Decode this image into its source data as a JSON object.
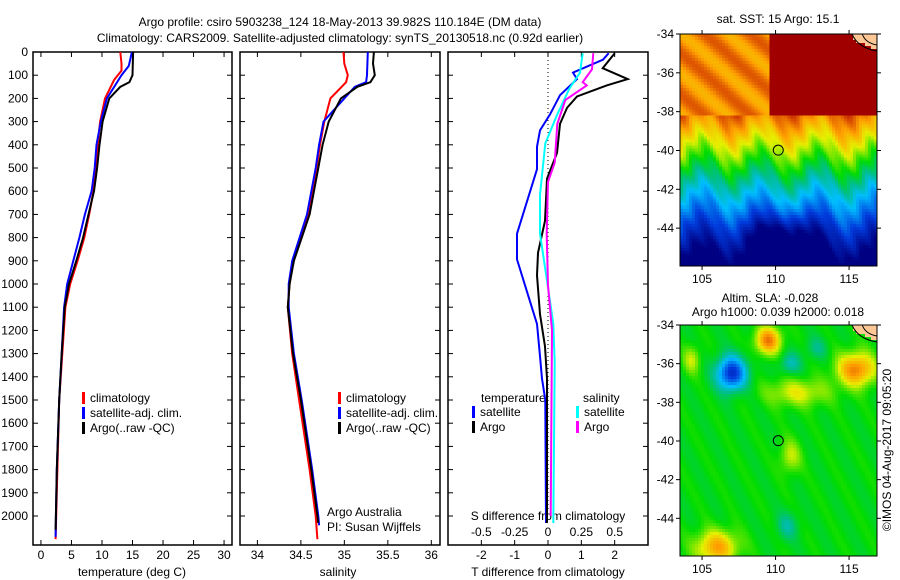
{
  "title": {
    "line1": "Argo profile: csiro 5903238_124 18-May-2013 39.982S 110.184E (DM data)",
    "line2": "Climatology: CARS2009. Satellite-adjusted climatology: synTS_20130518.nc (0.92d earlier)"
  },
  "colors": {
    "climatology": "#ff0000",
    "satellite": "#0000ff",
    "argo": "#000000",
    "sal_satellite": "#00ffff",
    "sal_argo": "#ff00ff"
  },
  "depth_axis": {
    "ticks": [
      0,
      100,
      200,
      300,
      400,
      500,
      600,
      700,
      800,
      900,
      1000,
      1100,
      1200,
      1300,
      1400,
      1500,
      1600,
      1700,
      1800,
      1900,
      2000
    ],
    "range": [
      0,
      2125
    ]
  },
  "chart_data": [
    {
      "type": "line",
      "id": "temperature",
      "xlabel": "temperature (deg C)",
      "ylabel": "depth",
      "xlim": [
        -1.3,
        31.3
      ],
      "xticks": [
        0,
        5,
        10,
        15,
        20,
        25,
        30
      ],
      "legend": {
        "placement": "lower-left",
        "items": [
          "climatology",
          "satellite-adj. clim.",
          "Argo(..raw -QC)"
        ]
      },
      "series": [
        {
          "name": "climatology",
          "color": "#ff0000",
          "depth": [
            0,
            50,
            80,
            120,
            200,
            300,
            400,
            500,
            600,
            700,
            800,
            900,
            1000,
            1100,
            1300,
            1500,
            1800,
            2000,
            2100
          ],
          "values": [
            13.0,
            13.2,
            13.2,
            12.0,
            10.5,
            9.7,
            9.3,
            9.0,
            8.6,
            7.9,
            7.1,
            6.0,
            4.8,
            4.0,
            3.5,
            3.0,
            2.7,
            2.5,
            2.4
          ]
        },
        {
          "name": "satellite-adj. clim.",
          "color": "#0000ff",
          "depth": [
            0,
            60,
            100,
            150,
            200,
            300,
            400,
            500,
            600,
            700,
            800,
            900,
            1000,
            1100,
            1300,
            1500,
            1800,
            2000,
            2090
          ],
          "values": [
            14.9,
            14.4,
            13.2,
            12.0,
            10.8,
            9.8,
            9.1,
            8.8,
            8.3,
            7.2,
            6.3,
            5.3,
            4.3,
            3.8,
            3.4,
            3.0,
            2.6,
            2.45,
            2.4
          ]
        },
        {
          "name": "Argo(..raw -QC)",
          "color": "#000000",
          "depth": [
            0,
            100,
            130,
            150,
            200,
            300,
            400,
            500,
            600,
            700,
            800,
            900,
            1000,
            1100,
            1300,
            1500,
            1800,
            2000,
            2060
          ],
          "values": [
            15.1,
            15.0,
            14.5,
            13.0,
            11.2,
            10.1,
            9.6,
            9.2,
            8.7,
            7.8,
            6.9,
            5.8,
            4.6,
            3.9,
            3.4,
            3.0,
            2.6,
            2.45,
            2.4
          ]
        }
      ]
    },
    {
      "type": "line",
      "id": "salinity",
      "xlabel": "salinity",
      "ylabel": "depth",
      "xlim": [
        33.8,
        36.1
      ],
      "xticks": [
        34,
        34.5,
        35,
        35.5,
        36
      ],
      "legend": {
        "placement": "lower-right",
        "items": [
          "climatology",
          "satellite-adj. clim.",
          "Argo(..raw -QC)"
        ]
      },
      "annotation": {
        "line1": "Argo Australia",
        "line2": "PI: Susan Wijffels"
      },
      "series": [
        {
          "name": "climatology",
          "color": "#ff0000",
          "depth": [
            0,
            50,
            100,
            130,
            200,
            300,
            400,
            500,
            700,
            900,
            1000,
            1100,
            1300,
            1500,
            1800,
            2000,
            2100
          ],
          "values": [
            34.99,
            35.0,
            35.04,
            35.02,
            34.84,
            34.77,
            34.72,
            34.68,
            34.59,
            34.41,
            34.37,
            34.35,
            34.4,
            34.48,
            34.6,
            34.67,
            34.69
          ]
        },
        {
          "name": "satellite-adj. clim.",
          "color": "#0000ff",
          "depth": [
            0,
            100,
            130,
            150,
            200,
            300,
            400,
            500,
            700,
            900,
            1000,
            1100,
            1300,
            1500,
            1800,
            2000,
            2040
          ],
          "values": [
            35.27,
            35.26,
            35.25,
            35.12,
            35.0,
            34.76,
            34.71,
            34.67,
            34.57,
            34.4,
            34.36,
            34.36,
            34.42,
            34.51,
            34.63,
            34.7,
            34.71
          ]
        },
        {
          "name": "Argo(..raw -QC)",
          "color": "#000000",
          "depth": [
            0,
            50,
            100,
            130,
            150,
            200,
            300,
            400,
            500,
            700,
            900,
            1000,
            1100,
            1300,
            1500,
            1800,
            2000,
            2030
          ],
          "values": [
            35.34,
            35.33,
            35.35,
            35.3,
            35.15,
            34.96,
            34.82,
            34.75,
            34.7,
            34.6,
            34.42,
            34.37,
            34.35,
            34.41,
            34.5,
            34.62,
            34.69,
            34.7
          ]
        }
      ]
    },
    {
      "type": "line",
      "id": "differences",
      "xlabel": "T difference from climatology",
      "x2label": "S difference from climatology",
      "xlim": [
        -3,
        3
      ],
      "xticks": [
        -2,
        -1,
        0,
        1,
        2
      ],
      "x2lim": [
        -0.75,
        0.75
      ],
      "x2ticks": [
        -0.5,
        -0.25,
        0,
        0.25,
        0.5
      ],
      "legend": {
        "placement": "lower",
        "temperature_title": "temperature",
        "salinity_title": "salinity",
        "items": [
          "satellite",
          "Argo",
          "satellite",
          "Argo"
        ]
      },
      "series": [
        {
          "name": "temperature satellite",
          "axis": "T",
          "color": "#0000ff",
          "depth": [
            5,
            33,
            89,
            117,
            186,
            269,
            338,
            408,
            505,
            644,
            783,
            894,
            1033,
            1172,
            1311,
            1408,
            1500,
            2030
          ],
          "values": [
            1.82,
            1.65,
            0.75,
            0.87,
            0.36,
            0.06,
            -0.24,
            -0.33,
            -0.33,
            -0.63,
            -0.93,
            -0.93,
            -0.63,
            -0.33,
            -0.24,
            -0.18,
            -0.08,
            -0.06
          ]
        },
        {
          "name": "temperature Argo",
          "axis": "T",
          "color": "#000000",
          "depth": [
            5,
            70,
            117,
            144,
            192,
            241,
            310,
            435,
            546,
            728,
            866,
            963,
            1130,
            1269,
            1408,
            2030
          ],
          "values": [
            2.0,
            1.64,
            2.39,
            1.76,
            0.87,
            0.57,
            0.36,
            0.27,
            -0.03,
            -0.09,
            -0.3,
            -0.33,
            -0.24,
            -0.09,
            -0.03,
            -0.03
          ]
        },
        {
          "name": "salinity satellite",
          "axis": "S",
          "color": "#00ffff",
          "depth": [
            5,
            89,
            158,
            269,
            394,
            616,
            783,
            977,
            1172,
            1339,
            2030
          ],
          "values": [
            0.26,
            0.24,
            0.16,
            0.07,
            -0.02,
            -0.06,
            -0.06,
            -0.01,
            0.04,
            0.05,
            0.04
          ]
        },
        {
          "name": "salinity Argo",
          "axis": "S",
          "color": "#ff00ff",
          "depth": [
            5,
            75,
            130,
            144,
            207,
            310,
            477,
            560,
            783,
            1005,
            1200,
            2000
          ],
          "values": [
            0.34,
            0.33,
            0.26,
            0.29,
            0.13,
            0.07,
            0.05,
            0.0,
            -0.01,
            0.0,
            0.03,
            0.02
          ]
        }
      ]
    }
  ],
  "maps": {
    "sst": {
      "title": "sat. SST: 15 Argo: 15.1",
      "lon_ticks": [
        "105",
        "110",
        "115"
      ],
      "lat_ticks": [
        "-34",
        "-36",
        "-38",
        "-40",
        "-42",
        "-44"
      ],
      "argo_lon": 110.184,
      "argo_lat": -39.982
    },
    "sla": {
      "title1": "Altim. SLA: -0.028",
      "title2": "Argo h1000: 0.039 h2000: 0.018",
      "lon_ticks": [
        "105",
        "110",
        "115"
      ],
      "lat_ticks": [
        "-34",
        "-36",
        "-38",
        "-40",
        "-42",
        "-44"
      ],
      "argo_lon": 110.184,
      "argo_lat": -39.982
    }
  },
  "copyright": "©IMOS 04-Aug-2017 09:05:20"
}
